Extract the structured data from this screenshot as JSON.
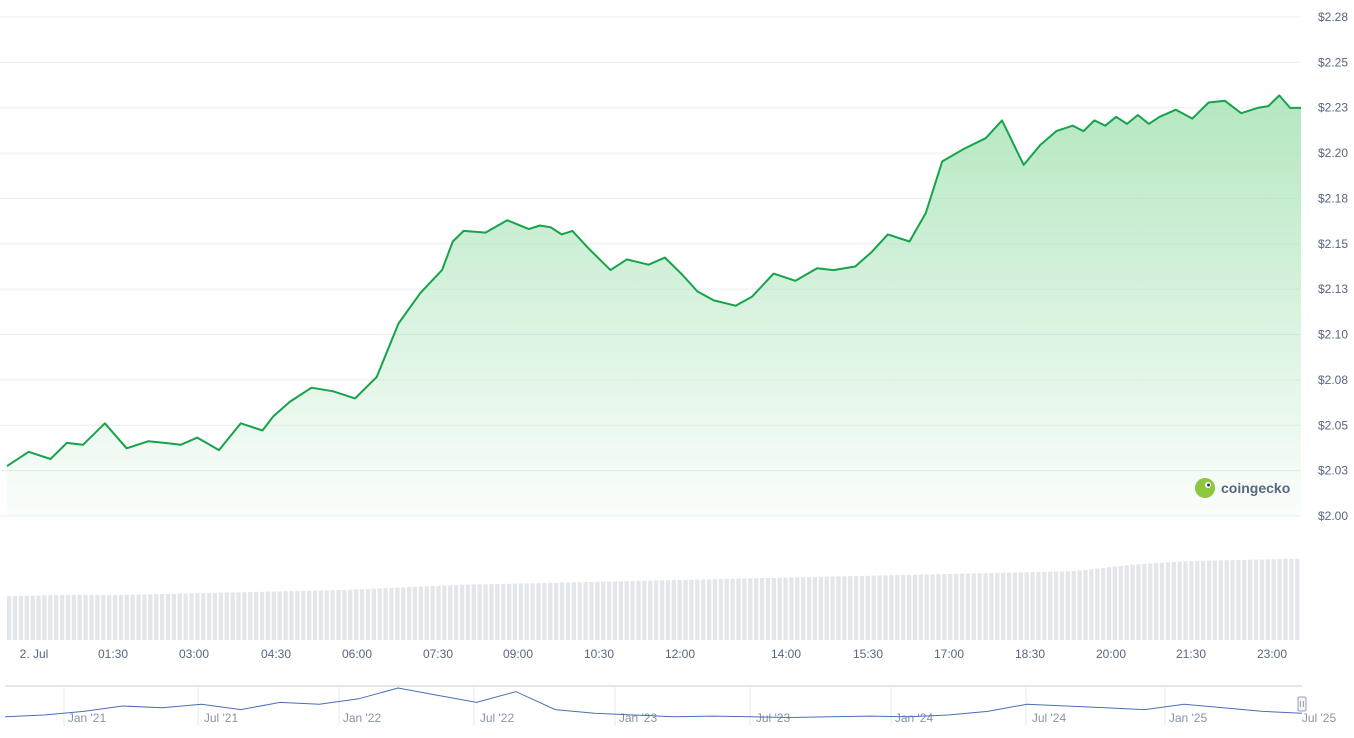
{
  "brand": {
    "name": "coingecko",
    "icon": "gecko-logo-icon"
  },
  "colors": {
    "line": "#16a34a",
    "fill_top": "#a7e3b6",
    "grid": "#e9ecf1",
    "volume": "#e3e6eb",
    "navigator_line": "#4a6fb5",
    "navigator_border": "#c9ced6"
  },
  "chart_data": [
    {
      "type": "area",
      "ylim": [
        2.0,
        2.28
      ],
      "y_ticks": [
        "$2.28",
        "$2.25",
        "$2.23",
        "$2.20",
        "$2.18",
        "$2.15",
        "$2.13",
        "$2.10",
        "$2.08",
        "$2.05",
        "$2.03",
        "$2.00"
      ],
      "x_ticks": [
        "2. Jul",
        "01:30",
        "03:00",
        "04:30",
        "06:00",
        "07:30",
        "09:00",
        "10:30",
        "12:00",
        "14:00",
        "15:30",
        "17:00",
        "18:30",
        "20:00",
        "21:30",
        "23:00"
      ],
      "xlim_hours": [
        -0.2,
        23.6
      ],
      "series": [
        {
          "x_hours": [
            -0.2,
            0.2,
            0.6,
            0.9,
            1.2,
            1.6,
            2.0,
            2.4,
            2.7,
            3.0,
            3.3,
            3.7,
            4.1,
            4.5,
            4.7,
            5.0,
            5.4,
            5.8,
            6.2,
            6.6,
            7.0,
            7.4,
            7.8,
            8.0,
            8.2,
            8.6,
            9.0,
            9.4,
            9.6,
            9.8,
            10.0,
            10.2,
            10.5,
            10.9,
            11.2,
            11.6,
            11.9,
            12.2,
            12.5,
            12.8,
            13.2,
            13.5,
            13.9,
            14.3,
            14.7,
            15.0,
            15.4,
            15.7,
            16.0,
            16.4,
            16.7,
            17.0,
            17.4,
            17.8,
            18.1,
            18.5,
            18.8,
            19.1,
            19.4,
            19.6,
            19.8,
            20.0,
            20.2,
            20.4,
            20.6,
            20.8,
            21.0,
            21.3,
            21.6,
            21.9,
            22.2,
            22.5,
            22.8,
            23.0,
            23.2,
            23.4,
            23.6
          ],
          "y_values": [
            2.028,
            2.036,
            2.032,
            2.041,
            2.04,
            2.052,
            2.038,
            2.042,
            2.041,
            2.04,
            2.044,
            2.037,
            2.052,
            2.048,
            2.056,
            2.064,
            2.072,
            2.07,
            2.066,
            2.078,
            2.108,
            2.125,
            2.138,
            2.154,
            2.16,
            2.159,
            2.166,
            2.161,
            2.163,
            2.162,
            2.158,
            2.16,
            2.15,
            2.138,
            2.144,
            2.141,
            2.145,
            2.136,
            2.126,
            2.121,
            2.118,
            2.123,
            2.136,
            2.132,
            2.139,
            2.138,
            2.14,
            2.148,
            2.158,
            2.154,
            2.17,
            2.199,
            2.206,
            2.212,
            2.222,
            2.197,
            2.208,
            2.216,
            2.219,
            2.216,
            2.222,
            2.219,
            2.224,
            2.22,
            2.225,
            2.22,
            2.224,
            2.228,
            2.223,
            2.232,
            2.233,
            2.226,
            2.229,
            2.23,
            2.236,
            2.229,
            2.229
          ]
        }
      ]
    },
    {
      "type": "bar",
      "title": "",
      "note": "volume bars, unlabeled",
      "values": [
        0.35,
        0.36,
        0.36,
        0.37,
        0.38,
        0.39,
        0.4,
        0.42,
        0.44,
        0.45,
        0.46,
        0.47,
        0.48,
        0.49,
        0.5,
        0.51,
        0.52,
        0.53,
        0.54,
        0.55,
        0.6,
        0.63,
        0.64,
        0.65
      ]
    },
    {
      "type": "line",
      "title": "",
      "x_ticks": [
        "Jan '21",
        "Jul '21",
        "Jan '22",
        "Jul '22",
        "Jan '23",
        "Jul '23",
        "Jan '24",
        "Jul '24",
        "Jan '25",
        "Jul '25"
      ],
      "values": [
        0.2,
        0.25,
        0.35,
        0.5,
        0.45,
        0.55,
        0.4,
        0.6,
        0.55,
        0.7,
        1.0,
        0.8,
        0.6,
        0.9,
        0.4,
        0.3,
        0.25,
        0.2,
        0.22,
        0.2,
        0.18,
        0.2,
        0.22,
        0.2,
        0.25,
        0.35,
        0.55,
        0.5,
        0.45,
        0.4,
        0.55,
        0.45,
        0.35,
        0.3
      ]
    }
  ]
}
